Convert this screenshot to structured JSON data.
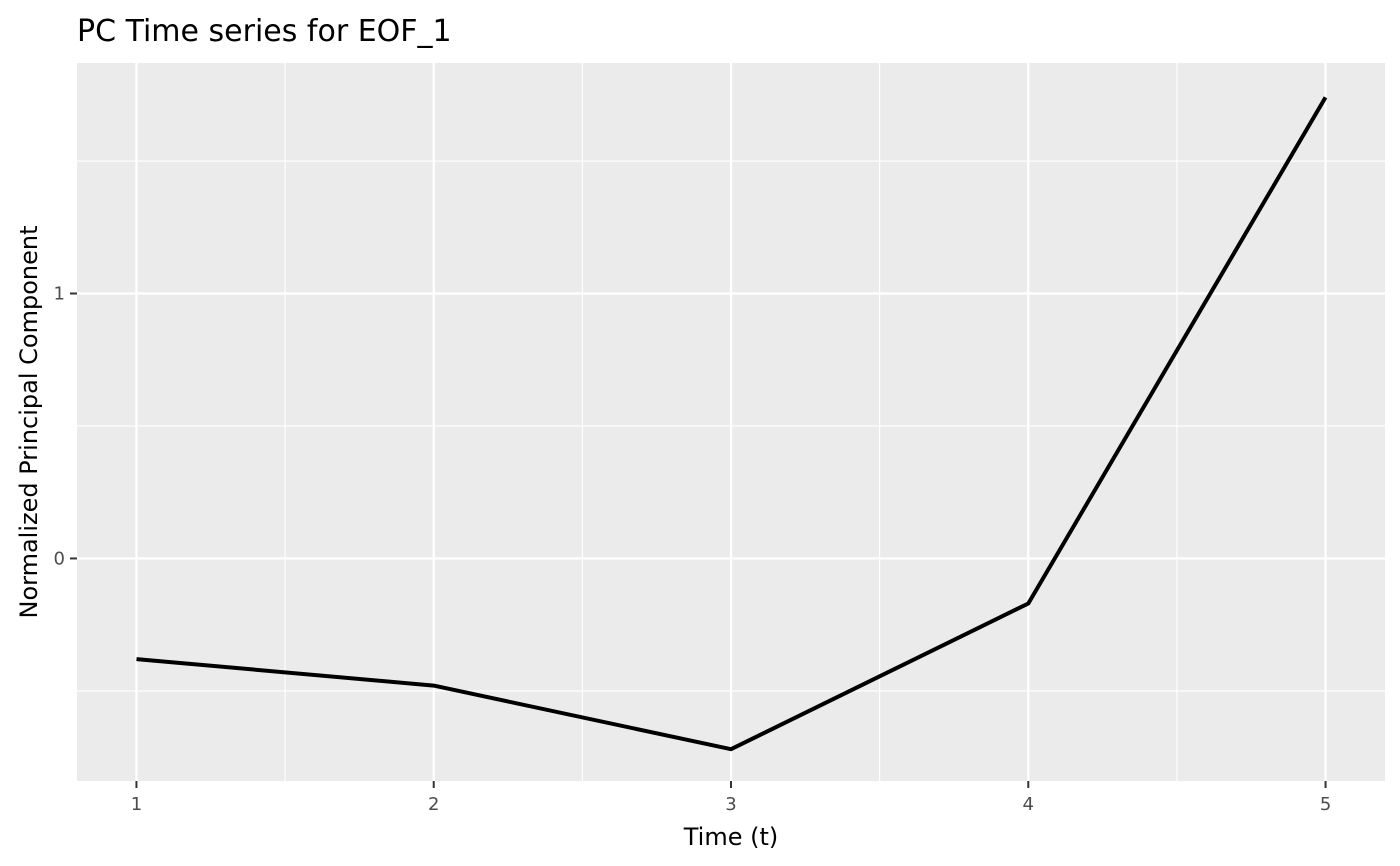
{
  "chart_data": {
    "type": "line",
    "title": "PC Time series for EOF_1",
    "xlabel": "Time (t)",
    "ylabel": "Normalized Principal Component",
    "x": [
      1,
      2,
      3,
      4,
      5
    ],
    "series": [
      {
        "values": [
          -0.38,
          -0.48,
          -0.72,
          -0.17,
          1.74
        ]
      }
    ],
    "xlim": [
      0.8,
      5.2
    ],
    "ylim": [
      -0.84,
      1.87
    ],
    "xticks": [
      1,
      2,
      3,
      4,
      5
    ],
    "xtick_labels": [
      "1",
      "2",
      "3",
      "4",
      "5"
    ],
    "yticks": [
      0,
      1
    ],
    "ytick_labels": [
      "0",
      "1"
    ],
    "x_minor_gridlines": [
      1.5,
      2.5,
      3.5,
      4.5
    ],
    "y_minor_gridlines": [
      -0.5,
      0.5,
      1.5
    ],
    "grid": true,
    "panel_background": "#ebebeb",
    "gridline_color": "#ffffff",
    "line_color": "#000000"
  }
}
